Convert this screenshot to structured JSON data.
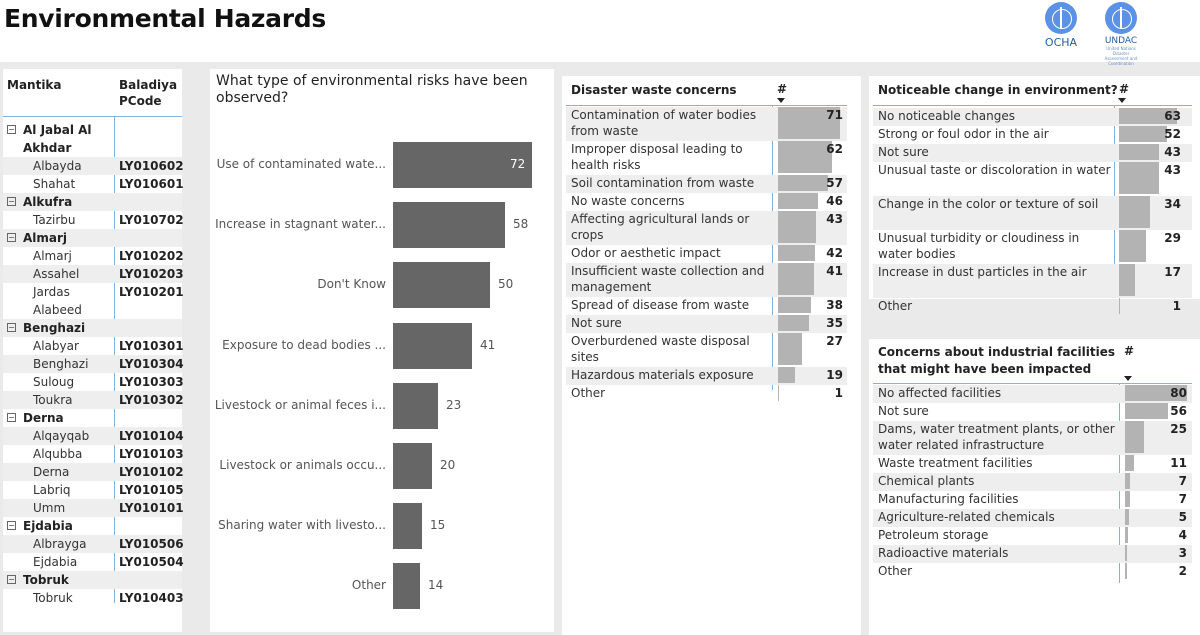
{
  "header": {
    "title": "Environmental Hazards",
    "logo_ocha": "OCHA",
    "logo_undac": "UNDAC",
    "logo_undac_sub": "United Nations Disaster Assessment and Coordination"
  },
  "table": {
    "col1": "Mantika",
    "col2": "Baladiya PCode",
    "groups": [
      {
        "name": "Al Jabal Al Akhdar",
        "rows": [
          {
            "name": "Albayda",
            "code": "LY010602"
          },
          {
            "name": "Shahat",
            "code": "LY010601"
          }
        ]
      },
      {
        "name": "Alkufra",
        "rows": [
          {
            "name": "Tazirbu",
            "code": "LY010702"
          }
        ]
      },
      {
        "name": "Almarj",
        "rows": [
          {
            "name": "Almarj",
            "code": "LY010202"
          },
          {
            "name": "Assahel",
            "code": "LY010203"
          },
          {
            "name": "Jardas Alabeed",
            "code": "LY010201"
          }
        ]
      },
      {
        "name": "Benghazi",
        "rows": [
          {
            "name": "Alabyar",
            "code": "LY010301"
          },
          {
            "name": "Benghazi",
            "code": "LY010304"
          },
          {
            "name": "Suloug",
            "code": "LY010303"
          },
          {
            "name": "Toukra",
            "code": "LY010302"
          }
        ]
      },
      {
        "name": "Derna",
        "rows": [
          {
            "name": "Alqayqab",
            "code": "LY010104"
          },
          {
            "name": "Alqubba",
            "code": "LY010103"
          },
          {
            "name": "Derna",
            "code": "LY010102"
          },
          {
            "name": "Labriq",
            "code": "LY010105"
          },
          {
            "name": "Umm",
            "code": "LY010101"
          }
        ]
      },
      {
        "name": "Ejdabia",
        "rows": [
          {
            "name": "Albrayga",
            "code": "LY010506"
          },
          {
            "name": "Ejdabia",
            "code": "LY010504"
          }
        ]
      },
      {
        "name": "Tobruk",
        "rows": [
          {
            "name": "Tobruk",
            "code": "LY010403"
          }
        ]
      }
    ]
  },
  "chart_data": {
    "type": "bar",
    "title": "What type of environmental risks have been observed?",
    "categories": [
      "Use of contaminated wate...",
      "Increase in stagnant water...",
      "Don't Know",
      "Exposure to dead bodies ...",
      "Livestock or animal feces i...",
      "Livestock or animals occu...",
      "Sharing water with livesto...",
      "Other"
    ],
    "values": [
      72,
      58,
      50,
      41,
      23,
      20,
      15,
      14
    ],
    "orientation": "horizontal",
    "xlim": [
      0,
      72
    ]
  },
  "waste": {
    "title": "Disaster waste concerns",
    "hash": "#",
    "items": [
      {
        "label": "Contamination of water bodies from waste",
        "value": 71
      },
      {
        "label": "Improper disposal leading to health risks",
        "value": 62
      },
      {
        "label": "Soil contamination from waste",
        "value": 57
      },
      {
        "label": "No waste concerns",
        "value": 46
      },
      {
        "label": "Affecting agricultural lands or crops",
        "value": 43
      },
      {
        "label": "Odor or aesthetic impact",
        "value": 42
      },
      {
        "label": "Insufficient waste collection and management",
        "value": 41
      },
      {
        "label": "Spread of disease from waste",
        "value": 38
      },
      {
        "label": "Not sure",
        "value": 35
      },
      {
        "label": "Overburdened waste disposal sites",
        "value": 27
      },
      {
        "label": "Hazardous materials exposure",
        "value": 19
      },
      {
        "label": "Other",
        "value": 1
      }
    ]
  },
  "change": {
    "title": "Noticeable change in environment?",
    "hash": "#",
    "items": [
      {
        "label": "No noticeable changes",
        "value": 63
      },
      {
        "label": "Strong or foul odor in the air",
        "value": 52
      },
      {
        "label": "Not sure",
        "value": 43
      },
      {
        "label": "Unusual taste or discoloration in water",
        "value": 43
      },
      {
        "label": "Change in the color or texture of soil",
        "value": 34
      },
      {
        "label": "Unusual turbidity or cloudiness in water bodies",
        "value": 29
      },
      {
        "label": "Increase in dust particles in the air",
        "value": 17
      },
      {
        "label": "Other",
        "value": 1
      }
    ]
  },
  "industrial": {
    "title": "Concerns about industrial facilities that might have been impacted",
    "hash": "#",
    "items": [
      {
        "label": "No affected facilities",
        "value": 80
      },
      {
        "label": "Not sure",
        "value": 56
      },
      {
        "label": "Dams, water treatment plants, or other water related infrastructure",
        "value": 25
      },
      {
        "label": "Waste treatment facilities",
        "value": 11
      },
      {
        "label": "Chemical plants",
        "value": 7
      },
      {
        "label": "Manufacturing facilities",
        "value": 7
      },
      {
        "label": "Agriculture-related chemicals",
        "value": 5
      },
      {
        "label": "Petroleum storage",
        "value": 4
      },
      {
        "label": "Radioactive materials",
        "value": 3
      },
      {
        "label": "Other",
        "value": 2
      }
    ]
  },
  "colors": {
    "bar": "#666666",
    "list_bar": "#b3b3b3",
    "accent": "#7eb3e2"
  }
}
